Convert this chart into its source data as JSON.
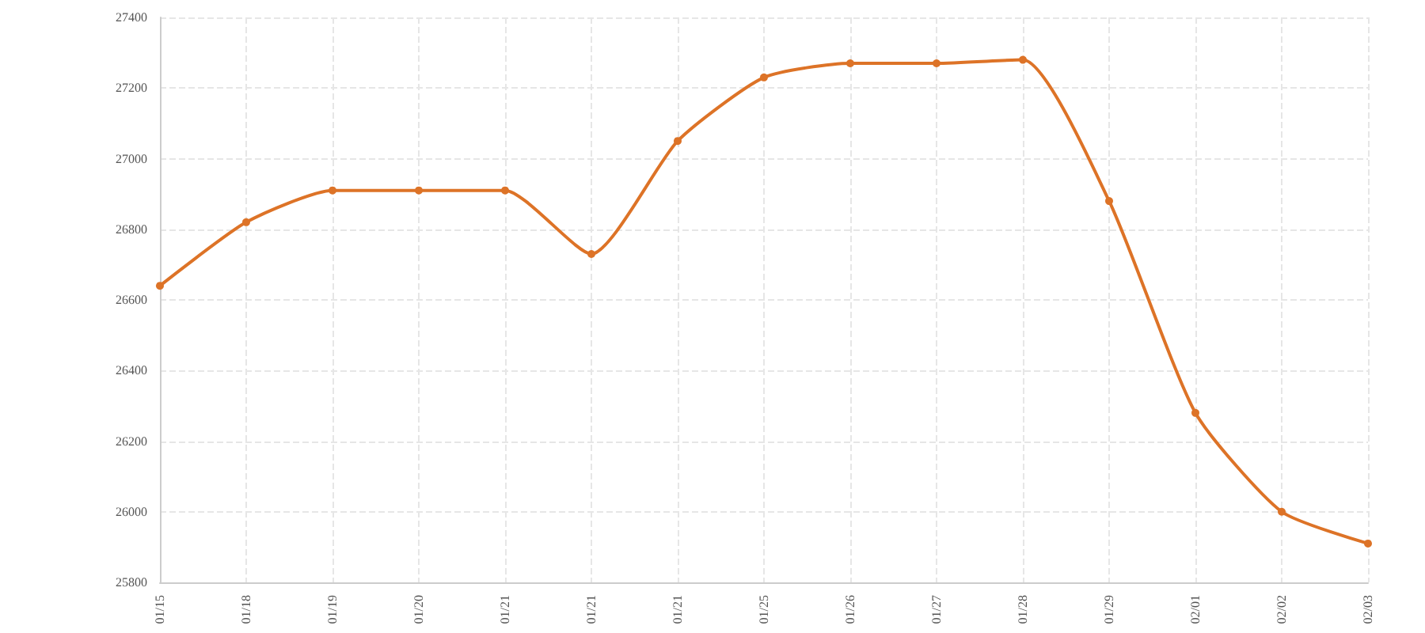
{
  "chart_data": {
    "type": "line",
    "categories": [
      "01/15",
      "01/18",
      "01/19",
      "01/20",
      "01/21",
      "01/21",
      "01/21",
      "01/25",
      "01/26",
      "01/27",
      "01/28",
      "01/29",
      "02/01",
      "02/02",
      "02/03"
    ],
    "series": [
      {
        "color": "#dd7327",
        "values": [
          26640,
          26820,
          26910,
          26910,
          26910,
          26730,
          27050,
          27230,
          27270,
          27270,
          27280,
          26880,
          26280,
          26000,
          25910
        ]
      }
    ],
    "ylim": [
      25800,
      27400
    ],
    "yticks": [
      25800,
      26000,
      26200,
      26400,
      26600,
      26800,
      27000,
      27200,
      27400
    ],
    "grid": true,
    "marker": "circle",
    "line_style": "solid"
  }
}
